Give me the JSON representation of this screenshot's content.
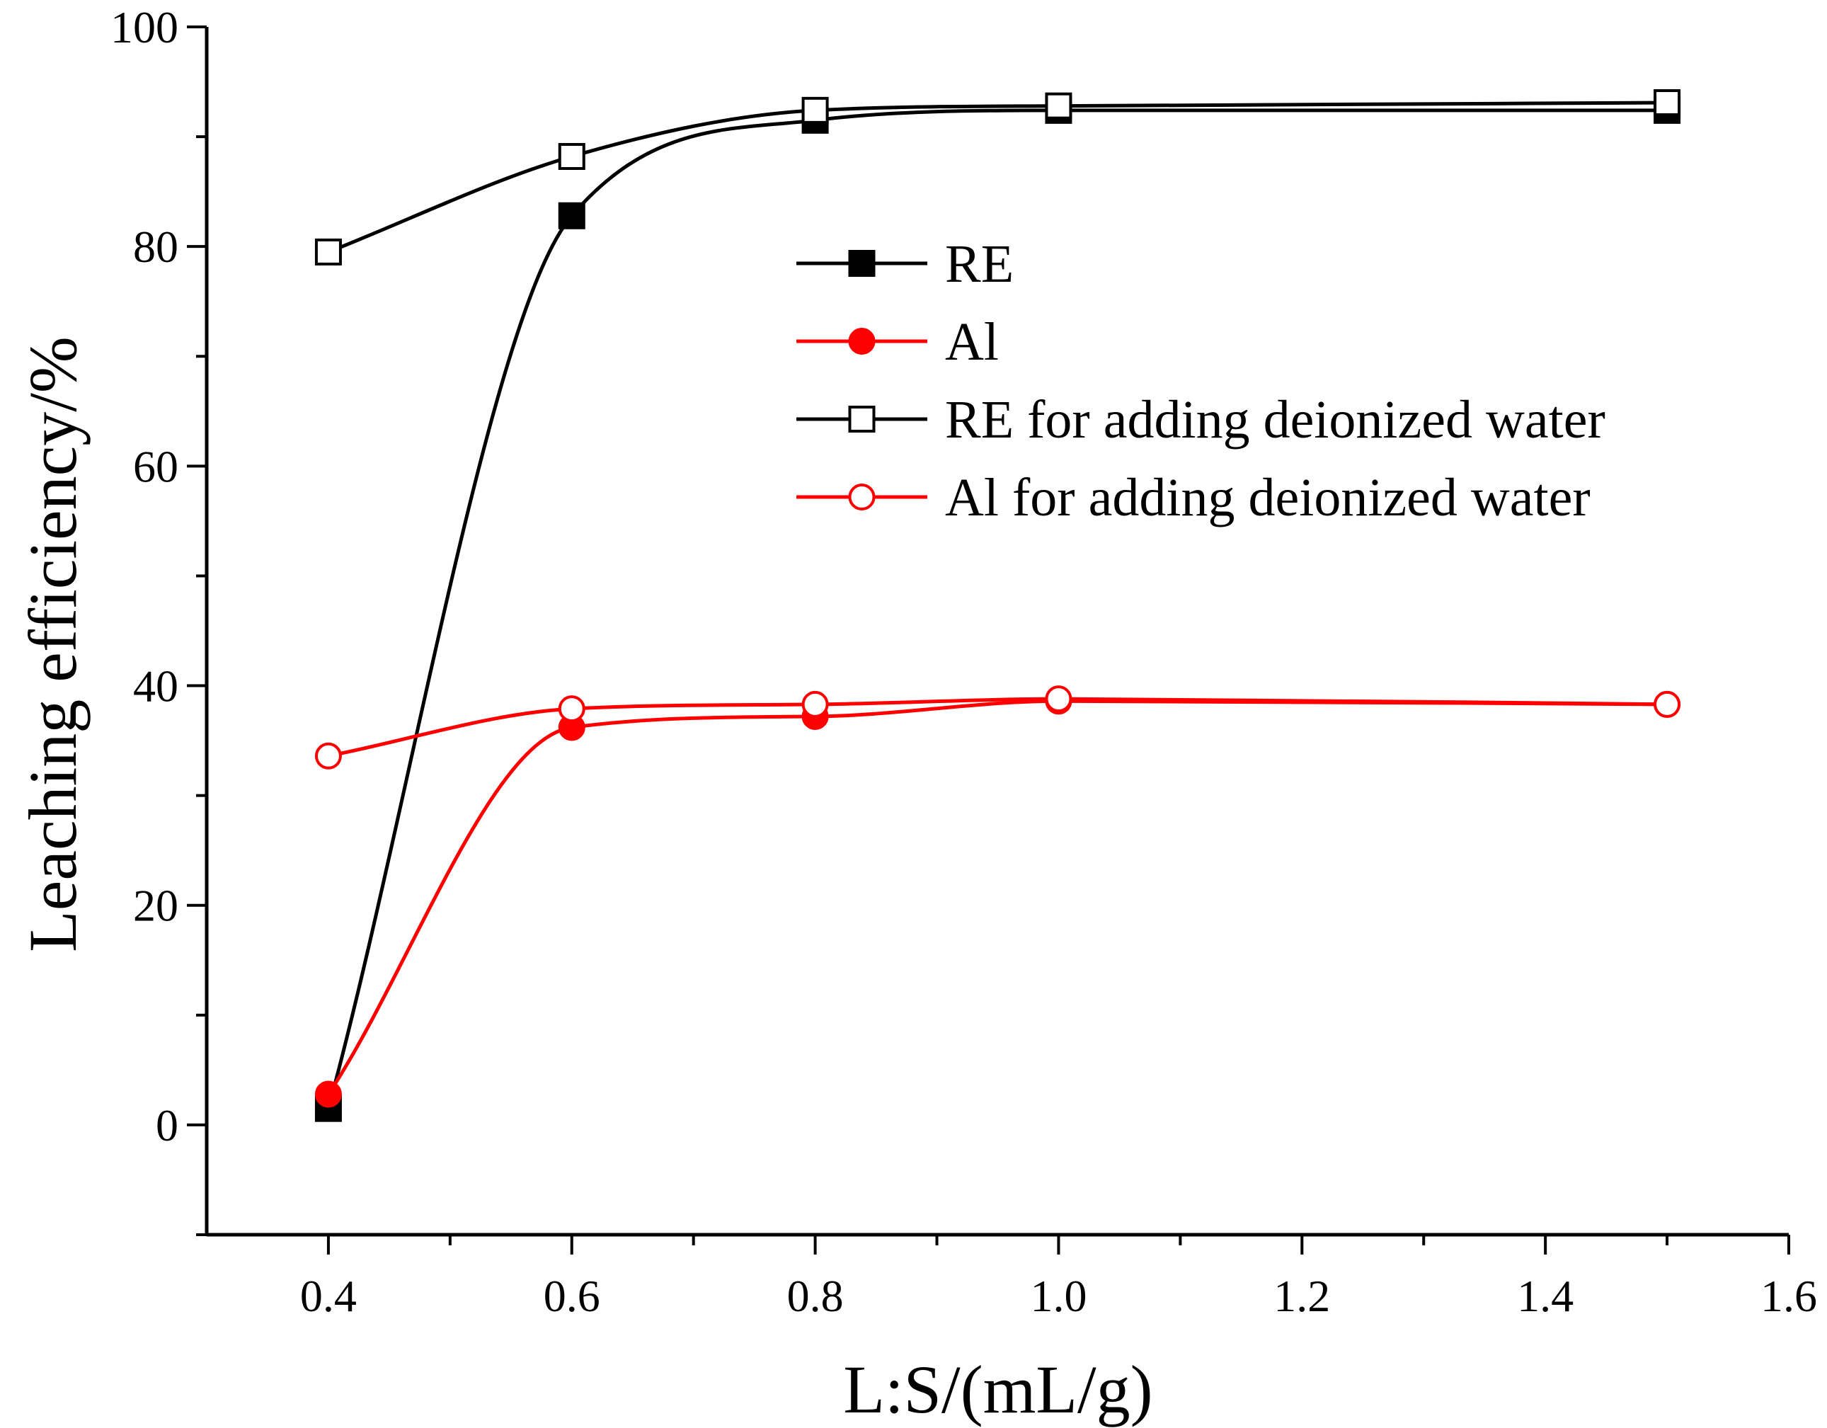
{
  "chart_data": {
    "type": "line",
    "title": "",
    "xlabel": "L:S/(mL/g)",
    "ylabel": "Leaching efficiency/%",
    "xlim": [
      0.3,
      1.6
    ],
    "ylim": [
      -10,
      100
    ],
    "xticks": [
      0.4,
      0.6,
      0.8,
      1.0,
      1.2,
      1.4,
      1.6
    ],
    "xtick_labels": [
      "0.4",
      "0.6",
      "0.8",
      "1.0",
      "1.2",
      "1.4",
      "1.6"
    ],
    "yticks": [
      0,
      20,
      40,
      60,
      80,
      100
    ],
    "ytick_labels": [
      "0",
      "20",
      "40",
      "60",
      "80",
      "100"
    ],
    "grid": false,
    "legend_position": "center-right",
    "x": [
      0.4,
      0.6,
      0.8,
      1.0,
      1.5
    ],
    "series": [
      {
        "name": "RE",
        "color": "#000000",
        "marker": "square-filled",
        "values": [
          1.5,
          82.8,
          91.5,
          92.4,
          92.4
        ]
      },
      {
        "name": "Al",
        "color": "#ff0000",
        "marker": "circle-filled",
        "values": [
          2.8,
          36.2,
          37.2,
          38.6,
          38.3
        ]
      },
      {
        "name": "RE for adding deionized water",
        "color": "#000000",
        "marker": "square-open",
        "values": [
          79.5,
          88.2,
          92.4,
          92.8,
          93.1
        ]
      },
      {
        "name": "Al for adding deionized water",
        "color": "#ff0000",
        "marker": "circle-open",
        "values": [
          33.6,
          37.9,
          38.3,
          38.8,
          38.3
        ]
      }
    ]
  }
}
